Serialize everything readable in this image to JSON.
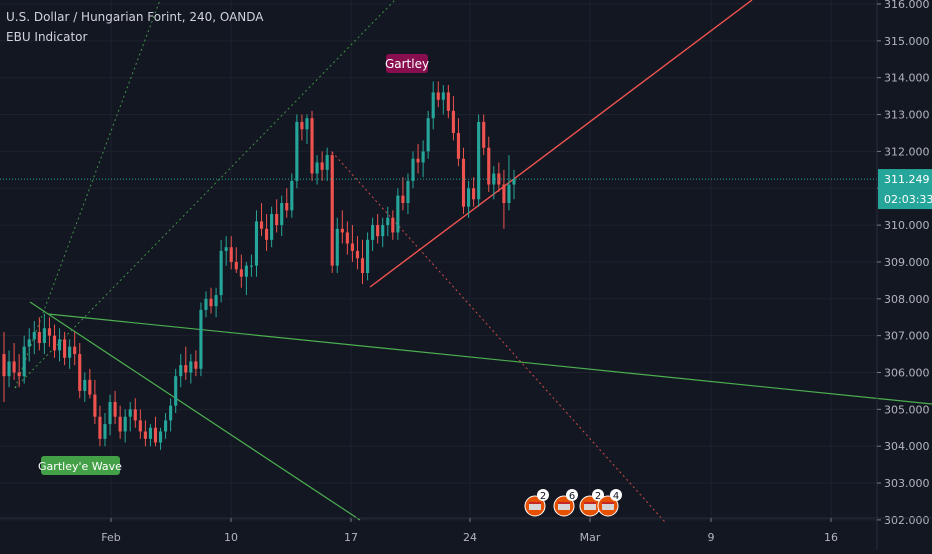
{
  "header": {
    "title": "U.S. Dollar / Hungarian Forint, 240, OANDA",
    "indicator": "EBU Indicator"
  },
  "price_axis": {
    "labels": [
      "316.000",
      "315.000",
      "314.000",
      "313.000",
      "312.000",
      "311.000",
      "310.000",
      "309.000",
      "308.000",
      "307.000",
      "306.000",
      "305.000",
      "304.000",
      "303.000",
      "302.000"
    ],
    "current_price": "311.249",
    "countdown": "02:03:33"
  },
  "time_axis": {
    "labels": [
      "Feb",
      "10",
      "17",
      "24",
      "Mar",
      "9",
      "16"
    ]
  },
  "annotations": {
    "gartley": "Gartley",
    "gartley_wave": "Gartley'e Wave"
  },
  "events": [
    "2",
    "6",
    "2",
    "4"
  ],
  "colors": {
    "background": "#131722",
    "bull": "#26a69a",
    "bear": "#ef5350",
    "grid": "#1e222d",
    "last_price": "#26a69a",
    "trendline_red": "#f05350",
    "trendline_green": "#4caf50",
    "gartley_label_bg": "#880e4f",
    "wave_label_bg": "#43a047"
  },
  "chart_data": {
    "type": "candlestick",
    "title": "U.S. Dollar / Hungarian Forint, 240, OANDA",
    "ylim": [
      302.0,
      316.0
    ],
    "last_price": 311.249,
    "candles": [
      [
        306.5,
        307.1,
        305.2,
        305.9
      ],
      [
        305.9,
        306.6,
        305.6,
        306.3
      ],
      [
        306.3,
        306.8,
        305.8,
        306.0
      ],
      [
        306.0,
        306.5,
        305.6,
        305.9
      ],
      [
        305.9,
        307.0,
        305.7,
        306.7
      ],
      [
        306.7,
        307.2,
        306.3,
        306.9
      ],
      [
        306.9,
        307.4,
        306.5,
        307.1
      ],
      [
        307.1,
        307.5,
        306.6,
        306.8
      ],
      [
        306.8,
        307.6,
        306.5,
        307.2
      ],
      [
        307.2,
        307.5,
        306.7,
        307.0
      ],
      [
        307.0,
        307.3,
        306.4,
        306.6
      ],
      [
        306.6,
        307.2,
        306.3,
        306.9
      ],
      [
        306.9,
        307.1,
        306.2,
        306.4
      ],
      [
        306.4,
        306.9,
        306.1,
        306.7
      ],
      [
        306.7,
        307.1,
        306.2,
        306.5
      ],
      [
        306.5,
        306.8,
        305.3,
        305.5
      ],
      [
        305.5,
        306.0,
        305.2,
        305.8
      ],
      [
        305.8,
        306.1,
        305.3,
        305.4
      ],
      [
        305.4,
        305.8,
        304.6,
        304.8
      ],
      [
        304.8,
        305.1,
        304.0,
        304.2
      ],
      [
        304.2,
        304.9,
        304.0,
        304.6
      ],
      [
        304.6,
        305.4,
        304.3,
        305.2
      ],
      [
        305.2,
        305.5,
        304.6,
        304.8
      ],
      [
        304.8,
        305.1,
        304.2,
        304.4
      ],
      [
        304.4,
        305.0,
        304.1,
        304.8
      ],
      [
        304.8,
        305.2,
        304.4,
        305.0
      ],
      [
        305.0,
        305.3,
        304.5,
        304.7
      ],
      [
        304.7,
        305.0,
        304.2,
        304.4
      ],
      [
        304.4,
        304.7,
        304.0,
        304.2
      ],
      [
        304.2,
        304.6,
        304.0,
        304.5
      ],
      [
        304.5,
        304.8,
        304.0,
        304.1
      ],
      [
        304.1,
        304.5,
        303.9,
        304.4
      ],
      [
        304.4,
        304.9,
        304.2,
        304.7
      ],
      [
        304.7,
        305.3,
        304.4,
        305.1
      ],
      [
        305.1,
        306.1,
        304.9,
        305.9
      ],
      [
        305.9,
        306.5,
        305.6,
        306.2
      ],
      [
        306.2,
        306.7,
        305.8,
        306.0
      ],
      [
        306.0,
        306.5,
        305.7,
        306.3
      ],
      [
        306.3,
        306.6,
        305.9,
        306.1
      ],
      [
        306.1,
        307.9,
        305.9,
        307.7
      ],
      [
        307.7,
        308.2,
        307.5,
        308.0
      ],
      [
        308.0,
        308.3,
        307.6,
        307.8
      ],
      [
        307.8,
        308.3,
        307.5,
        308.1
      ],
      [
        308.1,
        309.6,
        307.9,
        309.3
      ],
      [
        309.3,
        309.7,
        308.9,
        309.4
      ],
      [
        309.4,
        309.7,
        308.8,
        309.0
      ],
      [
        309.0,
        309.4,
        308.7,
        308.8
      ],
      [
        308.8,
        309.2,
        308.3,
        308.6
      ],
      [
        308.6,
        309.0,
        308.1,
        308.9
      ],
      [
        308.9,
        309.2,
        308.6,
        308.9
      ],
      [
        308.9,
        310.4,
        308.6,
        310.1
      ],
      [
        310.1,
        310.6,
        309.7,
        309.9
      ],
      [
        309.9,
        310.3,
        309.3,
        309.6
      ],
      [
        309.6,
        310.5,
        309.4,
        310.3
      ],
      [
        310.3,
        310.7,
        309.8,
        310.0
      ],
      [
        310.0,
        310.8,
        309.7,
        310.6
      ],
      [
        310.6,
        311.0,
        310.2,
        310.4
      ],
      [
        310.4,
        311.4,
        310.2,
        311.2
      ],
      [
        311.2,
        313.0,
        311.0,
        312.8
      ],
      [
        312.8,
        313.0,
        312.3,
        312.6
      ],
      [
        312.6,
        313.0,
        312.2,
        312.9
      ],
      [
        312.9,
        313.1,
        311.2,
        311.4
      ],
      [
        311.4,
        311.9,
        311.1,
        311.7
      ],
      [
        311.7,
        312.0,
        311.2,
        311.5
      ],
      [
        311.5,
        312.1,
        311.2,
        311.9
      ],
      [
        311.9,
        312.0,
        308.7,
        308.9
      ],
      [
        308.9,
        310.2,
        308.7,
        309.9
      ],
      [
        309.9,
        310.4,
        309.5,
        309.8
      ],
      [
        309.8,
        310.1,
        309.2,
        309.5
      ],
      [
        309.5,
        310.0,
        309.0,
        309.3
      ],
      [
        309.3,
        309.7,
        308.8,
        309.1
      ],
      [
        309.1,
        309.6,
        308.4,
        308.7
      ],
      [
        308.7,
        309.8,
        308.5,
        309.6
      ],
      [
        309.6,
        310.2,
        309.3,
        310.0
      ],
      [
        310.0,
        310.3,
        309.5,
        309.7
      ],
      [
        309.7,
        310.2,
        309.4,
        310.0
      ],
      [
        310.0,
        310.5,
        309.7,
        310.2
      ],
      [
        310.2,
        310.4,
        309.6,
        309.8
      ],
      [
        309.8,
        311.0,
        309.6,
        310.8
      ],
      [
        310.8,
        311.3,
        310.4,
        310.6
      ],
      [
        310.6,
        311.4,
        310.3,
        311.2
      ],
      [
        311.2,
        312.0,
        311.0,
        311.8
      ],
      [
        311.8,
        312.2,
        311.4,
        311.7
      ],
      [
        311.7,
        312.3,
        311.3,
        312.0
      ],
      [
        312.0,
        313.1,
        311.8,
        312.9
      ],
      [
        312.9,
        313.9,
        312.6,
        313.6
      ],
      [
        313.6,
        313.9,
        313.2,
        313.4
      ],
      [
        313.4,
        313.8,
        313.0,
        313.6
      ],
      [
        313.6,
        313.8,
        312.9,
        313.1
      ],
      [
        313.1,
        313.5,
        312.3,
        312.5
      ],
      [
        312.5,
        312.9,
        311.6,
        311.8
      ],
      [
        311.8,
        312.1,
        310.3,
        310.5
      ],
      [
        310.5,
        311.2,
        310.2,
        311.0
      ],
      [
        311.0,
        311.3,
        310.5,
        310.7
      ],
      [
        310.7,
        313.0,
        310.5,
        312.8
      ],
      [
        312.8,
        313.0,
        311.9,
        312.1
      ],
      [
        312.1,
        312.4,
        310.9,
        311.1
      ],
      [
        311.1,
        311.6,
        310.7,
        311.4
      ],
      [
        311.4,
        311.7,
        310.9,
        311.1
      ],
      [
        311.1,
        311.5,
        309.9,
        310.6
      ],
      [
        310.6,
        311.9,
        310.4,
        311.1
      ],
      [
        311.1,
        311.5,
        310.7,
        311.249
      ]
    ]
  }
}
